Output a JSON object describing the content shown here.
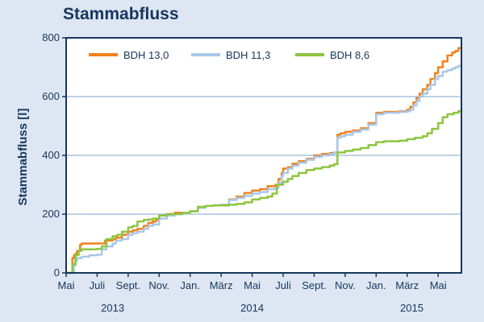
{
  "chart_data": {
    "type": "line",
    "title": "Stammabfluss",
    "xlabel": "",
    "ylabel": "Stammabfluss [l]",
    "ylim": [
      0,
      800
    ],
    "yticks": [
      0,
      200,
      400,
      600,
      800
    ],
    "grid": "horizontal",
    "legend_position": "top",
    "x_tick_labels": [
      {
        "label": "Mai",
        "month": 0
      },
      {
        "label": "Juli",
        "month": 2
      },
      {
        "label": "Sept.",
        "month": 4
      },
      {
        "label": "Nov.",
        "month": 6
      },
      {
        "label": "Jan.",
        "month": 8
      },
      {
        "label": "März",
        "month": 10
      },
      {
        "label": "Mai",
        "month": 12
      },
      {
        "label": "Juli",
        "month": 14
      },
      {
        "label": "Sept.",
        "month": 16
      },
      {
        "label": "Nov.",
        "month": 18
      },
      {
        "label": "Jan.",
        "month": 20
      },
      {
        "label": "März",
        "month": 22
      },
      {
        "label": "Mai",
        "month": 24
      }
    ],
    "x_group_labels": [
      {
        "label": "2013",
        "month": 3
      },
      {
        "label": "2014",
        "month": 12
      },
      {
        "label": "2015",
        "month": 22.3
      }
    ],
    "xlim_months": [
      0,
      25.5
    ],
    "series": [
      {
        "name": "BDH 13,0",
        "color": "#f0821e",
        "x_months": [
          0,
          0.3,
          0.4,
          0.5,
          0.6,
          0.7,
          0.9,
          1.0,
          2.0,
          2.2,
          2.5,
          3.0,
          3.2,
          3.6,
          4.0,
          4.3,
          4.6,
          5.0,
          5.3,
          5.6,
          5.8,
          6.0,
          6.5,
          7.0,
          7.5,
          8.0,
          8.5,
          9.0,
          9.5,
          10.0,
          10.5,
          11.0,
          11.5,
          12.0,
          12.5,
          13.0,
          13.5,
          13.7,
          13.9,
          14.0,
          14.3,
          14.6,
          15.0,
          15.5,
          16.0,
          16.5,
          17.0,
          17.3,
          17.5,
          17.7,
          18.0,
          18.5,
          19.0,
          19.5,
          20.0,
          20.5,
          21.0,
          21.5,
          22.0,
          22.2,
          22.4,
          22.6,
          22.8,
          23.0,
          23.3,
          23.5,
          23.8,
          24.0,
          24.3,
          24.6,
          24.9,
          25.1,
          25.3,
          25.5
        ],
        "values": [
          0,
          0,
          50,
          60,
          65,
          75,
          95,
          100,
          100,
          100,
          110,
          115,
          120,
          130,
          140,
          145,
          150,
          160,
          170,
          175,
          180,
          195,
          200,
          205,
          205,
          210,
          222,
          228,
          230,
          230,
          250,
          260,
          272,
          280,
          285,
          295,
          300,
          320,
          340,
          355,
          360,
          372,
          380,
          388,
          400,
          405,
          408,
          410,
          470,
          475,
          480,
          485,
          492,
          510,
          545,
          548,
          548,
          550,
          555,
          565,
          580,
          595,
          610,
          625,
          640,
          660,
          680,
          700,
          720,
          740,
          750,
          755,
          765,
          768
        ]
      },
      {
        "name": "BDH 11,3",
        "color": "#a9c8e8",
        "x_months": [
          0,
          0.4,
          0.5,
          0.6,
          0.7,
          1.0,
          1.5,
          2.0,
          2.3,
          2.6,
          3.0,
          3.2,
          3.6,
          4.0,
          4.3,
          4.6,
          5.0,
          5.3,
          5.6,
          6.0,
          6.5,
          7.0,
          7.5,
          8.0,
          8.5,
          9.0,
          9.5,
          10.0,
          10.5,
          11.0,
          11.5,
          12.0,
          12.5,
          13.0,
          13.5,
          13.7,
          13.9,
          14.0,
          14.3,
          14.6,
          15.0,
          15.5,
          16.0,
          16.5,
          17.0,
          17.3,
          17.5,
          17.7,
          18.0,
          18.5,
          19.0,
          19.5,
          20.0,
          20.5,
          21.0,
          21.5,
          22.0,
          22.2,
          22.4,
          22.6,
          22.8,
          23.0,
          23.3,
          23.5,
          23.8,
          24.0,
          24.3,
          24.6,
          24.9,
          25.1,
          25.3,
          25.5
        ],
        "values": [
          0,
          0,
          25,
          40,
          50,
          55,
          60,
          62,
          80,
          90,
          100,
          110,
          115,
          130,
          135,
          140,
          150,
          160,
          165,
          185,
          195,
          200,
          205,
          210,
          222,
          228,
          230,
          232,
          248,
          255,
          262,
          270,
          275,
          285,
          290,
          305,
          330,
          340,
          355,
          365,
          375,
          385,
          395,
          400,
          405,
          410,
          460,
          465,
          470,
          480,
          488,
          505,
          540,
          545,
          545,
          548,
          550,
          555,
          570,
          585,
          600,
          610,
          625,
          640,
          660,
          670,
          685,
          690,
          695,
          700,
          705,
          705
        ]
      },
      {
        "name": "BDH 8,6",
        "color": "#8dc63f",
        "x_months": [
          0,
          0.3,
          0.4,
          0.6,
          0.8,
          1.0,
          2.0,
          2.3,
          2.6,
          3.0,
          3.3,
          3.6,
          4.0,
          4.3,
          4.6,
          5.0,
          5.3,
          5.6,
          6.0,
          6.5,
          7.0,
          7.5,
          8.0,
          8.5,
          9.0,
          9.5,
          10.0,
          10.5,
          11.0,
          11.5,
          12.0,
          12.5,
          13.0,
          13.3,
          13.6,
          14.0,
          14.3,
          14.6,
          15.0,
          15.5,
          16.0,
          16.5,
          17.0,
          17.3,
          17.5,
          18.0,
          18.5,
          19.0,
          19.5,
          20.0,
          20.5,
          21.0,
          21.5,
          22.0,
          22.5,
          23.0,
          23.3,
          23.6,
          24.0,
          24.3,
          24.6,
          25.0,
          25.3,
          25.5
        ],
        "values": [
          0,
          0,
          30,
          60,
          75,
          80,
          82,
          90,
          115,
          125,
          130,
          140,
          155,
          160,
          175,
          180,
          182,
          185,
          195,
          200,
          200,
          205,
          210,
          225,
          228,
          230,
          230,
          232,
          235,
          240,
          250,
          255,
          260,
          270,
          300,
          310,
          320,
          330,
          340,
          350,
          355,
          360,
          365,
          370,
          410,
          415,
          420,
          425,
          435,
          445,
          448,
          448,
          450,
          455,
          460,
          465,
          475,
          490,
          510,
          530,
          540,
          545,
          550,
          560
        ]
      }
    ]
  }
}
